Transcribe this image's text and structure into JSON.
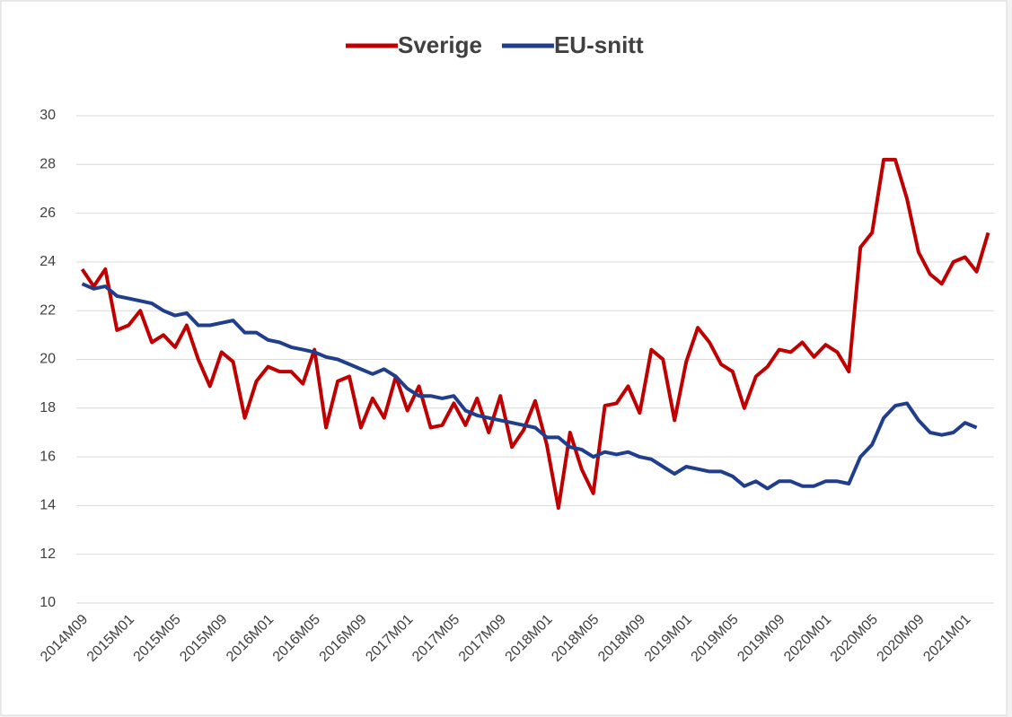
{
  "chart_data": {
    "type": "line",
    "categories": [
      "2014M09",
      null,
      null,
      null,
      "2015M01",
      null,
      null,
      null,
      "2015M05",
      null,
      null,
      null,
      "2015M09",
      null,
      null,
      null,
      "2016M01",
      null,
      null,
      null,
      "2016M05",
      null,
      null,
      null,
      "2016M09",
      null,
      null,
      null,
      "2017M01",
      null,
      null,
      null,
      "2017M05",
      null,
      null,
      null,
      "2017M09",
      null,
      null,
      null,
      "2018M01",
      null,
      null,
      null,
      "2018M05",
      null,
      null,
      null,
      "2018M09",
      null,
      null,
      null,
      "2019M01",
      null,
      null,
      null,
      "2019M05",
      null,
      null,
      null,
      "2019M09",
      null,
      null,
      null,
      "2020M01",
      null,
      null,
      null,
      "2020M05",
      null,
      null,
      null,
      "2020M09",
      null,
      null,
      null,
      "2021M01",
      null,
      null
    ],
    "series": [
      {
        "name": "Sverige",
        "color": "#c00000",
        "values": [
          23.7,
          23.0,
          23.7,
          21.2,
          21.4,
          22.0,
          20.7,
          21.0,
          20.5,
          21.4,
          20.0,
          18.9,
          20.3,
          19.9,
          17.6,
          19.1,
          19.7,
          19.5,
          19.5,
          19.0,
          20.4,
          17.2,
          19.1,
          19.3,
          17.2,
          18.4,
          17.6,
          19.3,
          17.9,
          18.9,
          17.2,
          17.3,
          18.2,
          17.3,
          18.4,
          17.0,
          18.5,
          16.4,
          17.1,
          18.3,
          16.5,
          13.9,
          17.0,
          15.5,
          14.5,
          18.1,
          18.2,
          18.9,
          17.8,
          20.4,
          20.0,
          17.5,
          19.9,
          21.3,
          20.7,
          19.8,
          19.5,
          18.0,
          19.3,
          19.7,
          20.4,
          20.3,
          20.7,
          20.1,
          20.6,
          20.3,
          19.5,
          24.6,
          25.2,
          28.2,
          28.2,
          26.6,
          24.4,
          23.5,
          23.1,
          24.0,
          24.2,
          23.6,
          25.2
        ]
      },
      {
        "name": "EU-snitt",
        "color": "#203e8c",
        "values": [
          23.1,
          22.9,
          23.0,
          22.6,
          22.5,
          22.4,
          22.3,
          22.0,
          21.8,
          21.9,
          21.4,
          21.4,
          21.5,
          21.6,
          21.1,
          21.1,
          20.8,
          20.7,
          20.5,
          20.4,
          20.3,
          20.1,
          20.0,
          19.8,
          19.6,
          19.4,
          19.6,
          19.3,
          18.8,
          18.5,
          18.5,
          18.4,
          18.5,
          17.9,
          17.7,
          17.6,
          17.5,
          17.4,
          17.3,
          17.2,
          16.8,
          16.8,
          16.4,
          16.3,
          16.0,
          16.2,
          16.1,
          16.2,
          16.0,
          15.9,
          15.6,
          15.3,
          15.6,
          15.5,
          15.4,
          15.4,
          15.2,
          14.8,
          15.0,
          14.7,
          15.0,
          15.0,
          14.8,
          14.8,
          15.0,
          15.0,
          14.9,
          16.0,
          16.5,
          17.6,
          18.1,
          18.2,
          17.5,
          17.0,
          16.9,
          17.0,
          17.4,
          17.2,
          null
        ]
      }
    ],
    "ylim": [
      10,
      30
    ],
    "yticks": [
      10,
      12,
      14,
      16,
      18,
      20,
      22,
      24,
      26,
      28,
      30
    ],
    "grid": true,
    "legend": "top"
  }
}
